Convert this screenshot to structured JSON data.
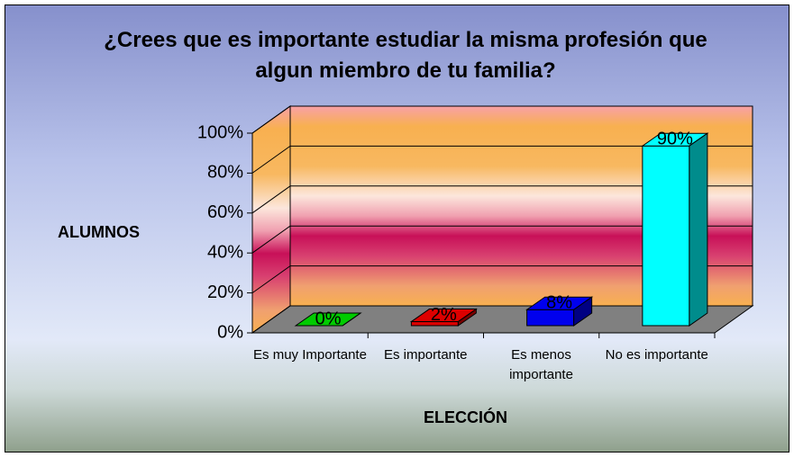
{
  "chart_data": {
    "type": "bar3d",
    "title": "¿Crees que es importante estudiar la misma profesión que algun miembro de tu familia?",
    "y_label": "ALUMNOS",
    "x_label": "ELECCIÓN",
    "categories": [
      "Es muy Importante",
      "Es importante",
      "Es menos importante",
      "No es importante"
    ],
    "values": [
      0,
      2,
      8,
      90
    ],
    "value_labels": [
      "0%",
      "2%",
      "8%",
      "90%"
    ],
    "colors": [
      "#00cc00",
      "#dd0000",
      "#0000ee",
      "#00ffff"
    ],
    "ylim": [
      0,
      100
    ],
    "yticks": [
      {
        "value": 0,
        "label": "0%"
      },
      {
        "value": 20,
        "label": "20%"
      },
      {
        "value": 40,
        "label": "40%"
      },
      {
        "value": 60,
        "label": "60%"
      },
      {
        "value": 80,
        "label": "80%"
      },
      {
        "value": 100,
        "label": "100%"
      }
    ],
    "grid": true
  }
}
